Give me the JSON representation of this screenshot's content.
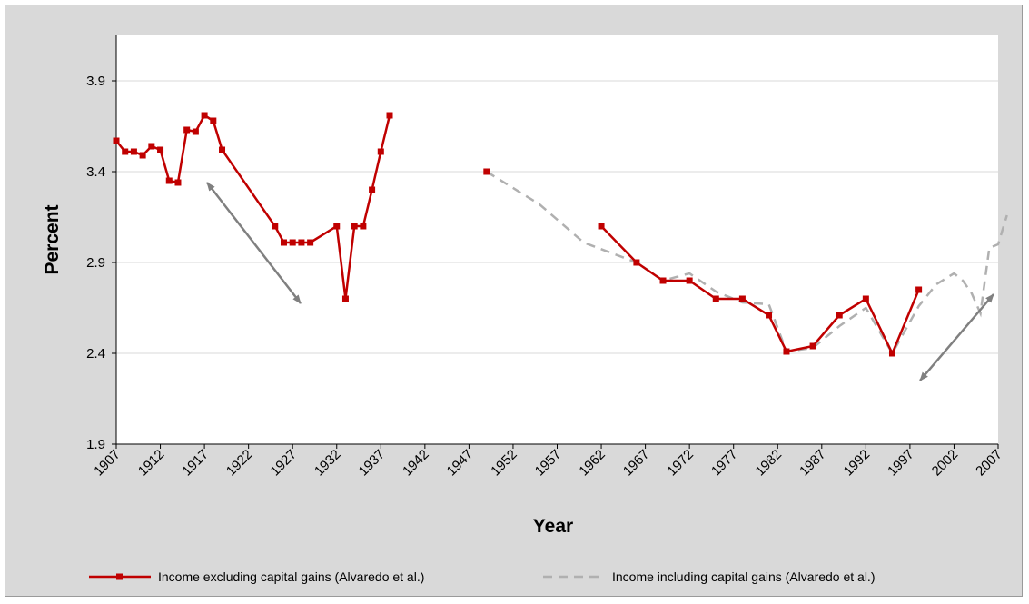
{
  "chart_data": {
    "type": "line",
    "title": "",
    "xlabel": "Year",
    "ylabel": "Percent",
    "xlim": [
      1907,
      2007
    ],
    "ylim": [
      1.9,
      4.15
    ],
    "y_ticks": [
      "1.9",
      "2.4",
      "2.9",
      "3.4",
      "3.9"
    ],
    "x_ticks": [
      "1907",
      "1912",
      "1917",
      "1922",
      "1927",
      "1932",
      "1937",
      "1942",
      "1947",
      "1952",
      "1957",
      "1962",
      "1967",
      "1972",
      "1977",
      "1982",
      "1987",
      "1992",
      "1997",
      "2002",
      "2007"
    ],
    "grid": "horizontal",
    "legend_position": "bottom",
    "series": [
      {
        "name": "Income excluding capital gains (Alvaredo et al.)",
        "color": "#c00000",
        "style": "solid-square-markers",
        "segments": [
          [
            [
              1907,
              3.57
            ],
            [
              1908,
              3.51
            ],
            [
              1909,
              3.51
            ],
            [
              1910,
              3.49
            ],
            [
              1911,
              3.54
            ],
            [
              1912,
              3.52
            ],
            [
              1913,
              3.35
            ],
            [
              1914,
              3.34
            ],
            [
              1915,
              3.63
            ],
            [
              1916,
              3.62
            ],
            [
              1917,
              3.71
            ],
            [
              1918,
              3.68
            ],
            [
              1919,
              3.52
            ],
            [
              1925,
              3.1
            ],
            [
              1926,
              3.01
            ],
            [
              1927,
              3.01
            ],
            [
              1928,
              3.01
            ],
            [
              1929,
              3.01
            ],
            [
              1932,
              3.1
            ],
            [
              1933,
              2.7
            ],
            [
              1934,
              3.1
            ],
            [
              1935,
              3.1
            ],
            [
              1936,
              3.3
            ],
            [
              1937,
              3.51
            ],
            [
              1938,
              3.71
            ]
          ],
          [
            [
              1949,
              3.4
            ]
          ],
          [
            [
              1962,
              3.1
            ],
            [
              1966,
              2.9
            ],
            [
              1969,
              2.8
            ],
            [
              1972,
              2.8
            ],
            [
              1975,
              2.7
            ],
            [
              1978,
              2.7
            ],
            [
              1981,
              2.61
            ],
            [
              1983,
              2.41
            ],
            [
              1986,
              2.44
            ],
            [
              1989,
              2.61
            ],
            [
              1992,
              2.7
            ],
            [
              1995,
              2.4
            ],
            [
              1998,
              2.75
            ]
          ]
        ]
      },
      {
        "name": "Income including capital gains (Alvaredo et al.)",
        "color": "#b0b0b0",
        "style": "dashed",
        "segments": [
          [
            [
              1949,
              3.4
            ],
            [
              1955,
              3.22
            ],
            [
              1960,
              3.01
            ],
            [
              1966,
              2.9
            ],
            [
              1969,
              2.8
            ],
            [
              1972,
              2.84
            ],
            [
              1975,
              2.74
            ],
            [
              1978,
              2.68
            ],
            [
              1981,
              2.67
            ],
            [
              1983,
              2.41
            ],
            [
              1986,
              2.43
            ],
            [
              1989,
              2.55
            ],
            [
              1992,
              2.65
            ],
            [
              1995,
              2.4
            ],
            [
              1998,
              2.66
            ],
            [
              2000,
              2.78
            ],
            [
              2002,
              2.84
            ],
            [
              2003,
              2.8
            ],
            [
              2004,
              2.73
            ],
            [
              2005,
              2.62
            ],
            [
              2006,
              2.98
            ],
            [
              2007,
              3.0
            ],
            [
              2008,
              3.16
            ]
          ]
        ]
      }
    ]
  }
}
